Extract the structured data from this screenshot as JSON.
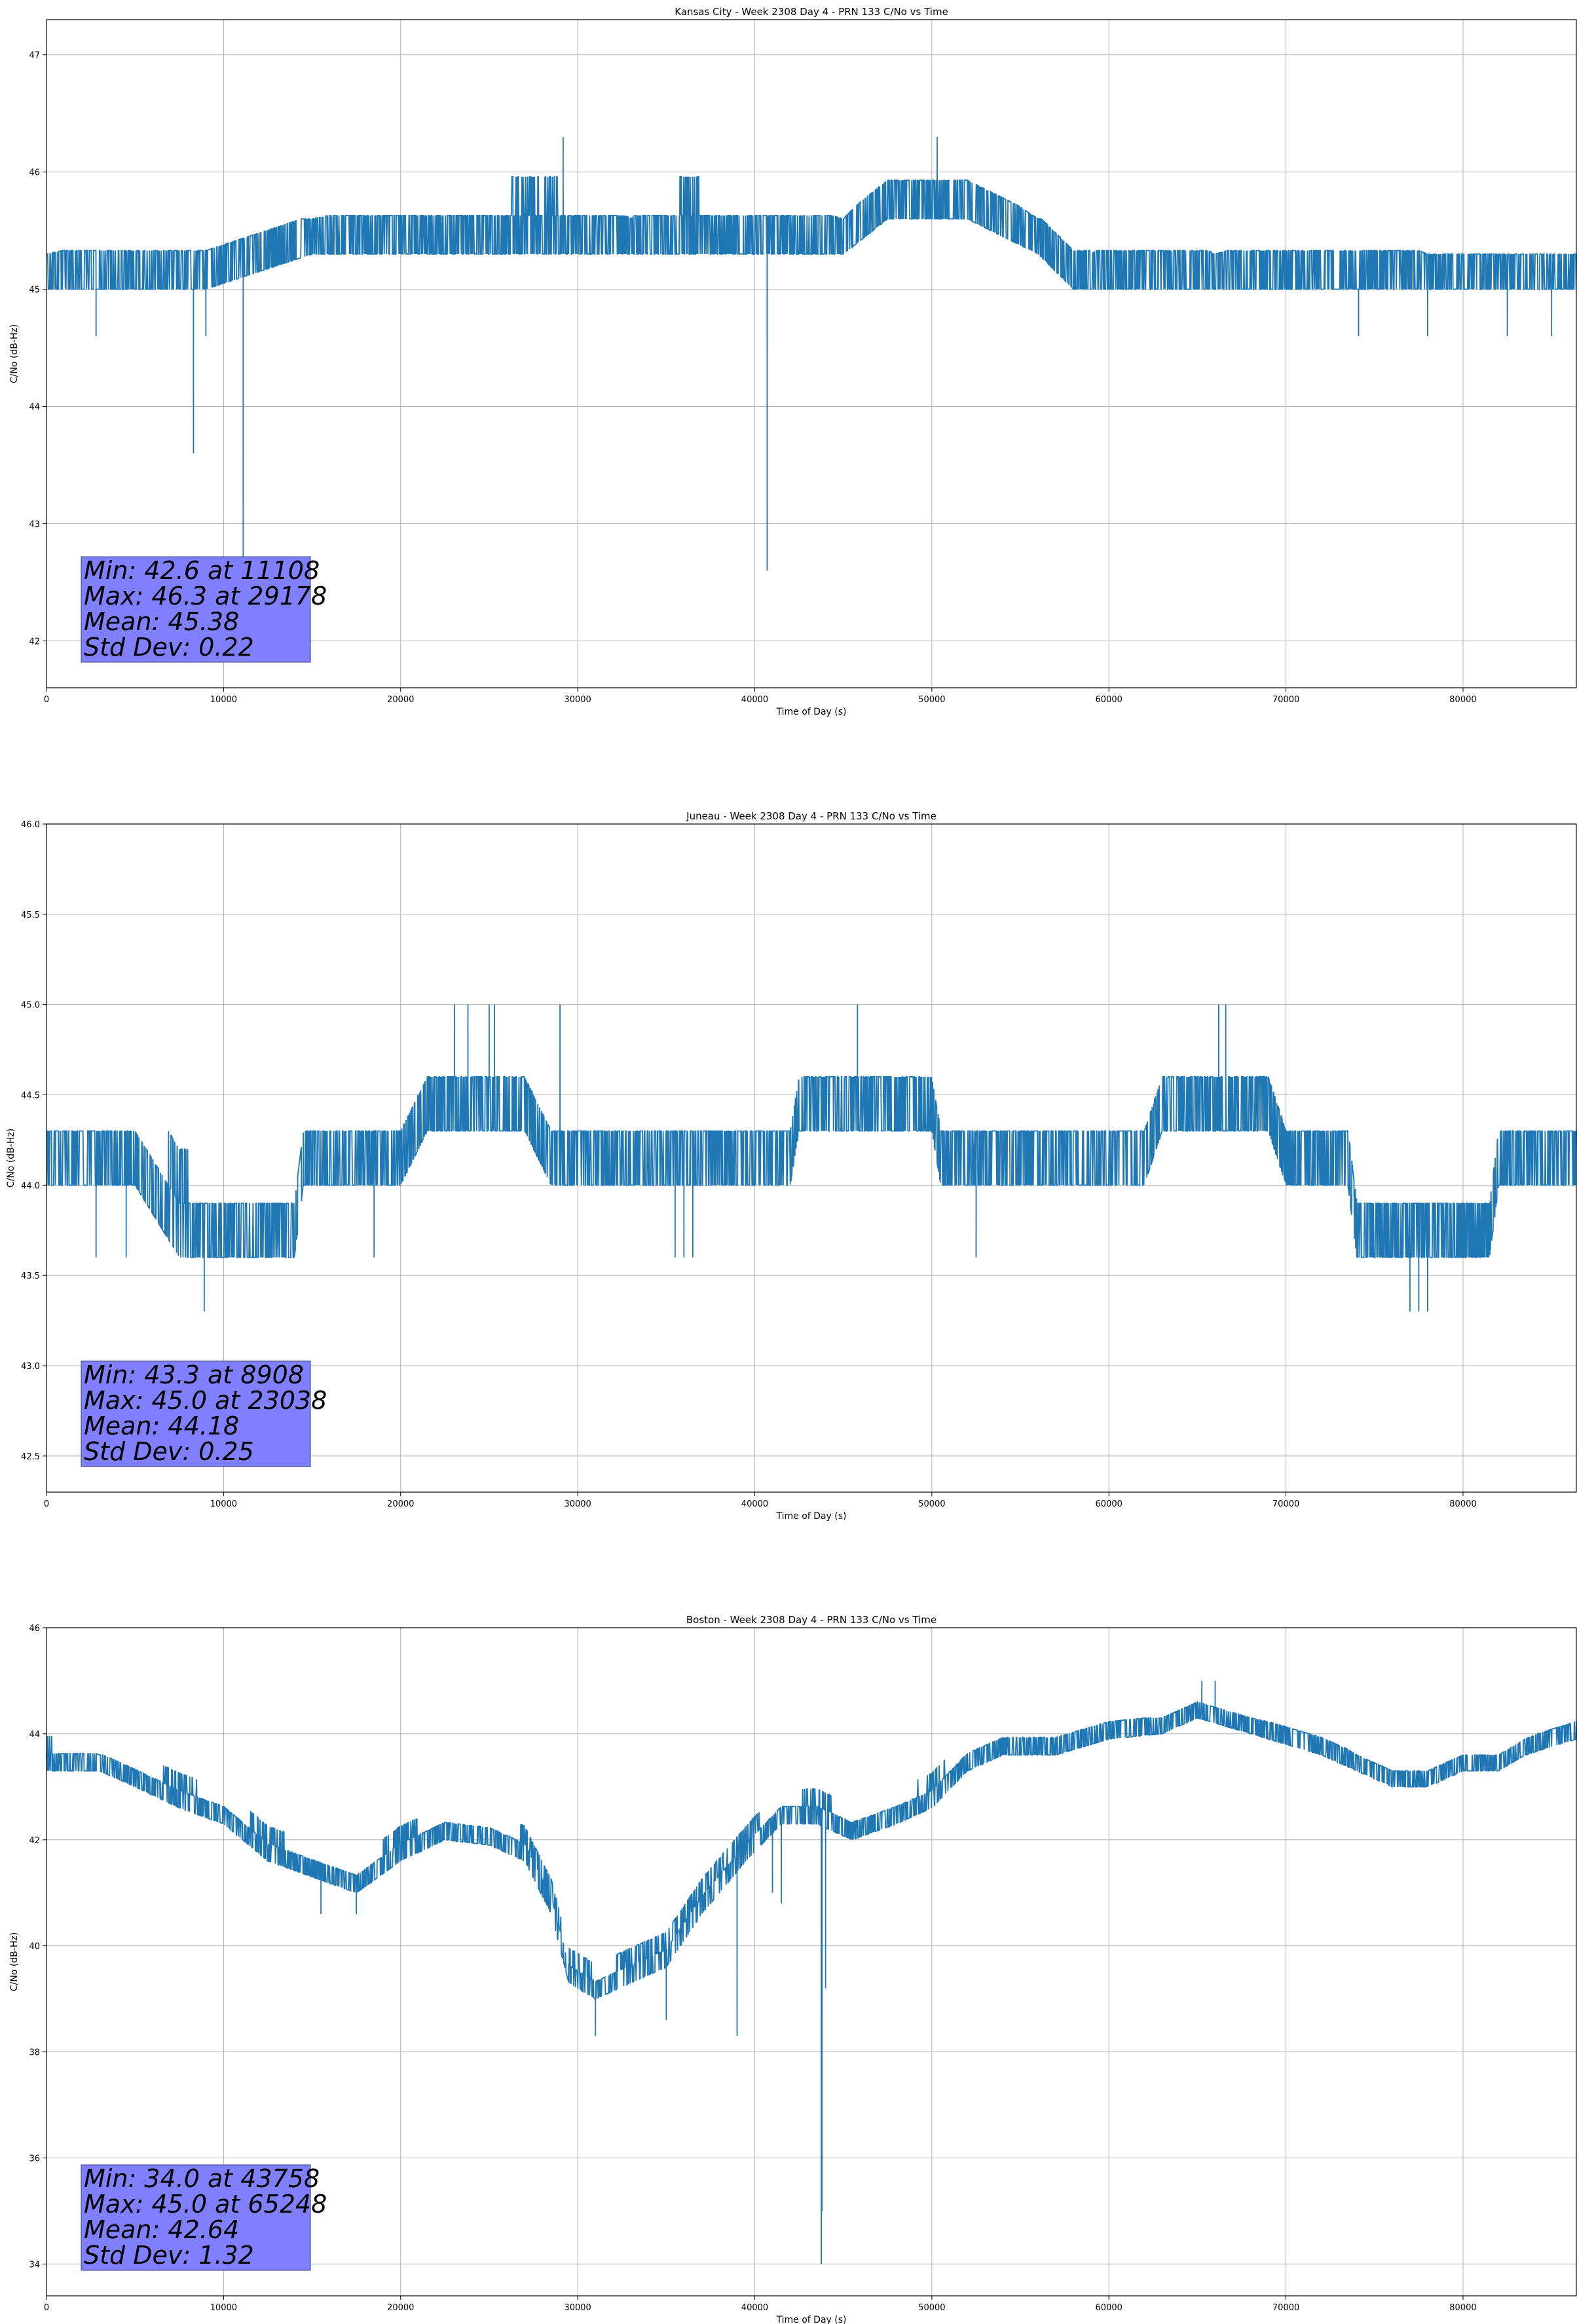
{
  "colors": {
    "line": "#1f77b4",
    "stats_box_fill": "#8080ff",
    "stats_box_edge": "#3b3b80",
    "grid": "#b0b0b0"
  },
  "chart_data": [
    {
      "type": "line",
      "title": "Kansas City - Week 2308 Day 4 - PRN 133 C/No vs Time",
      "xlabel": "Time of Day (s)",
      "ylabel": "C/No (dB-Hz)",
      "xlim": [
        0,
        86400
      ],
      "ylim": [
        41.6,
        47.3
      ],
      "xticks": [
        0,
        10000,
        20000,
        30000,
        40000,
        50000,
        60000,
        70000,
        80000
      ],
      "yticks": [
        42,
        43,
        44,
        45,
        46,
        47
      ],
      "ytick_decimals": 0,
      "grid": true,
      "quantum": 0.33,
      "band": [
        [
          0,
          45.0,
          45.3
        ],
        [
          9000,
          45.0,
          45.6
        ],
        [
          15000,
          45.3,
          45.6
        ],
        [
          27500,
          45.3,
          46.0
        ],
        [
          28500,
          45.3,
          46.0
        ],
        [
          33000,
          45.3,
          45.6
        ],
        [
          36000,
          45.3,
          46.0
        ],
        [
          45000,
          45.3,
          45.6
        ],
        [
          47500,
          45.6,
          46.0
        ],
        [
          52000,
          45.6,
          46.0
        ],
        [
          56000,
          45.3,
          45.6
        ],
        [
          58000,
          45.0,
          45.6
        ],
        [
          59000,
          45.0,
          45.3
        ],
        [
          62000,
          45.0,
          45.6
        ],
        [
          66000,
          45.0,
          45.3
        ],
        [
          73000,
          45.0,
          45.6
        ],
        [
          78000,
          45.0,
          45.3
        ],
        [
          86400,
          45.0,
          45.3
        ]
      ],
      "outliers": [
        [
          2800,
          44.6
        ],
        [
          8300,
          43.6
        ],
        [
          9000,
          44.6
        ],
        [
          11108,
          42.6
        ],
        [
          29178,
          46.3
        ],
        [
          40700,
          42.6
        ],
        [
          50300,
          46.3
        ],
        [
          74100,
          44.6
        ],
        [
          78000,
          44.6
        ],
        [
          82500,
          44.6
        ],
        [
          85000,
          44.6
        ]
      ],
      "stats": [
        "Min: 42.6 at 11108",
        "Max: 46.3 at 29178",
        "Mean: 45.38",
        "Std Dev: 0.22"
      ]
    },
    {
      "type": "line",
      "title": "Juneau - Week 2308 Day 4 - PRN 133 C/No vs Time",
      "xlabel": "Time of Day (s)",
      "ylabel": "C/No (dB-Hz)",
      "xlim": [
        0,
        86400
      ],
      "ylim": [
        42.3,
        46.0
      ],
      "xticks": [
        0,
        10000,
        20000,
        30000,
        40000,
        50000,
        60000,
        70000,
        80000
      ],
      "yticks": [
        42.5,
        43.0,
        43.5,
        44.0,
        44.5,
        45.0,
        45.5,
        46.0
      ],
      "ytick_decimals": 1,
      "grid": true,
      "quantum": 0.3,
      "band": [
        [
          0,
          44.0,
          44.3
        ],
        [
          5000,
          44.0,
          44.3
        ],
        [
          7500,
          43.6,
          44.3
        ],
        [
          9000,
          43.6,
          44.0
        ],
        [
          14000,
          43.6,
          44.0
        ],
        [
          14500,
          44.0,
          44.3
        ],
        [
          18000,
          44.0,
          44.3
        ],
        [
          20000,
          44.0,
          44.6
        ],
        [
          21500,
          44.3,
          44.6
        ],
        [
          27000,
          44.3,
          44.6
        ],
        [
          28500,
          44.0,
          44.6
        ],
        [
          29000,
          44.0,
          44.3
        ],
        [
          42000,
          44.0,
          44.3
        ],
        [
          42500,
          44.3,
          44.6
        ],
        [
          50000,
          44.3,
          44.6
        ],
        [
          50500,
          44.0,
          44.3
        ],
        [
          62000,
          44.0,
          44.3
        ],
        [
          63000,
          44.3,
          44.6
        ],
        [
          69000,
          44.3,
          44.6
        ],
        [
          70000,
          44.0,
          44.3
        ],
        [
          73500,
          44.0,
          44.3
        ],
        [
          74000,
          43.6,
          44.0
        ],
        [
          81500,
          43.6,
          44.0
        ],
        [
          82000,
          44.0,
          44.3
        ],
        [
          86400,
          44.0,
          44.3
        ]
      ],
      "outliers": [
        [
          2800,
          43.6
        ],
        [
          4500,
          43.6
        ],
        [
          8908,
          43.3
        ],
        [
          18500,
          43.6
        ],
        [
          23038,
          45.0
        ],
        [
          23800,
          45.0
        ],
        [
          25000,
          45.0
        ],
        [
          25300,
          45.0
        ],
        [
          29000,
          45.0
        ],
        [
          35500,
          43.6
        ],
        [
          36000,
          43.6
        ],
        [
          36500,
          43.6
        ],
        [
          45800,
          45.0
        ],
        [
          52500,
          43.6
        ],
        [
          66200,
          45.0
        ],
        [
          66600,
          45.0
        ],
        [
          77000,
          43.3
        ],
        [
          77500,
          43.3
        ],
        [
          78000,
          43.3
        ],
        [
          80000,
          43.6
        ]
      ],
      "stats": [
        "Min: 43.3 at 8908",
        "Max: 45.0 at 23038",
        "Mean: 44.18",
        "Std Dev: 0.25"
      ]
    },
    {
      "type": "line",
      "title": "Boston - Week 2308 Day 4 - PRN 133 C/No vs Time",
      "xlabel": "Time of Day (s)",
      "ylabel": "C/No (dB-Hz)",
      "xlim": [
        0,
        86400
      ],
      "ylim": [
        33.4,
        46.0
      ],
      "xticks": [
        0,
        10000,
        20000,
        30000,
        40000,
        50000,
        60000,
        70000,
        80000
      ],
      "yticks": [
        34,
        36,
        38,
        40,
        42,
        44,
        46
      ],
      "ytick_decimals": 0,
      "grid": true,
      "quantum": 0.33,
      "band": [
        [
          0,
          43.3,
          44.0
        ],
        [
          3000,
          43.3,
          43.6
        ],
        [
          5000,
          43.0,
          43.6
        ],
        [
          7500,
          42.6,
          43.3
        ],
        [
          10000,
          42.3,
          42.9
        ],
        [
          12500,
          41.6,
          42.3
        ],
        [
          15000,
          41.3,
          41.9
        ],
        [
          17500,
          41.0,
          41.6
        ],
        [
          20000,
          41.6,
          42.3
        ],
        [
          22500,
          42.0,
          42.6
        ],
        [
          25000,
          41.9,
          42.3
        ],
        [
          27000,
          41.6,
          42.3
        ],
        [
          28500,
          40.6,
          41.3
        ],
        [
          29500,
          39.3,
          40.3
        ],
        [
          31000,
          39.0,
          39.6
        ],
        [
          33000,
          39.3,
          40.0
        ],
        [
          35000,
          39.6,
          40.3
        ],
        [
          37000,
          40.6,
          41.3
        ],
        [
          39500,
          41.6,
          42.3
        ],
        [
          41500,
          42.3,
          42.9
        ],
        [
          43500,
          42.3,
          43.0
        ],
        [
          45500,
          42.0,
          42.6
        ],
        [
          48000,
          42.3,
          42.9
        ],
        [
          50000,
          42.6,
          43.3
        ],
        [
          52000,
          43.3,
          43.9
        ],
        [
          54000,
          43.6,
          44.0
        ],
        [
          57000,
          43.6,
          44.0
        ],
        [
          60000,
          43.9,
          44.3
        ],
        [
          63000,
          44.0,
          44.3
        ],
        [
          65000,
          44.3,
          44.6
        ],
        [
          68000,
          44.0,
          44.3
        ],
        [
          72000,
          43.6,
          44.0
        ],
        [
          74000,
          43.3,
          43.6
        ],
        [
          76000,
          43.0,
          43.3
        ],
        [
          78000,
          43.0,
          43.3
        ],
        [
          80000,
          43.3,
          43.6
        ],
        [
          82000,
          43.3,
          43.6
        ],
        [
          83500,
          43.6,
          43.9
        ],
        [
          86400,
          43.9,
          44.3
        ]
      ],
      "outliers": [
        [
          7500,
          42.6
        ],
        [
          15500,
          40.6
        ],
        [
          17500,
          40.6
        ],
        [
          31000,
          38.3
        ],
        [
          35000,
          38.6
        ],
        [
          39000,
          38.3
        ],
        [
          41000,
          41.0
        ],
        [
          41500,
          40.8
        ],
        [
          44000,
          39.2
        ],
        [
          43758,
          34.0
        ],
        [
          43800,
          35.0
        ],
        [
          65248,
          45.0
        ],
        [
          66000,
          45.0
        ]
      ],
      "stats": [
        "Min: 34.0 at 43758",
        "Max: 45.0 at 65248",
        "Mean: 42.64",
        "Std Dev: 1.32"
      ]
    }
  ]
}
